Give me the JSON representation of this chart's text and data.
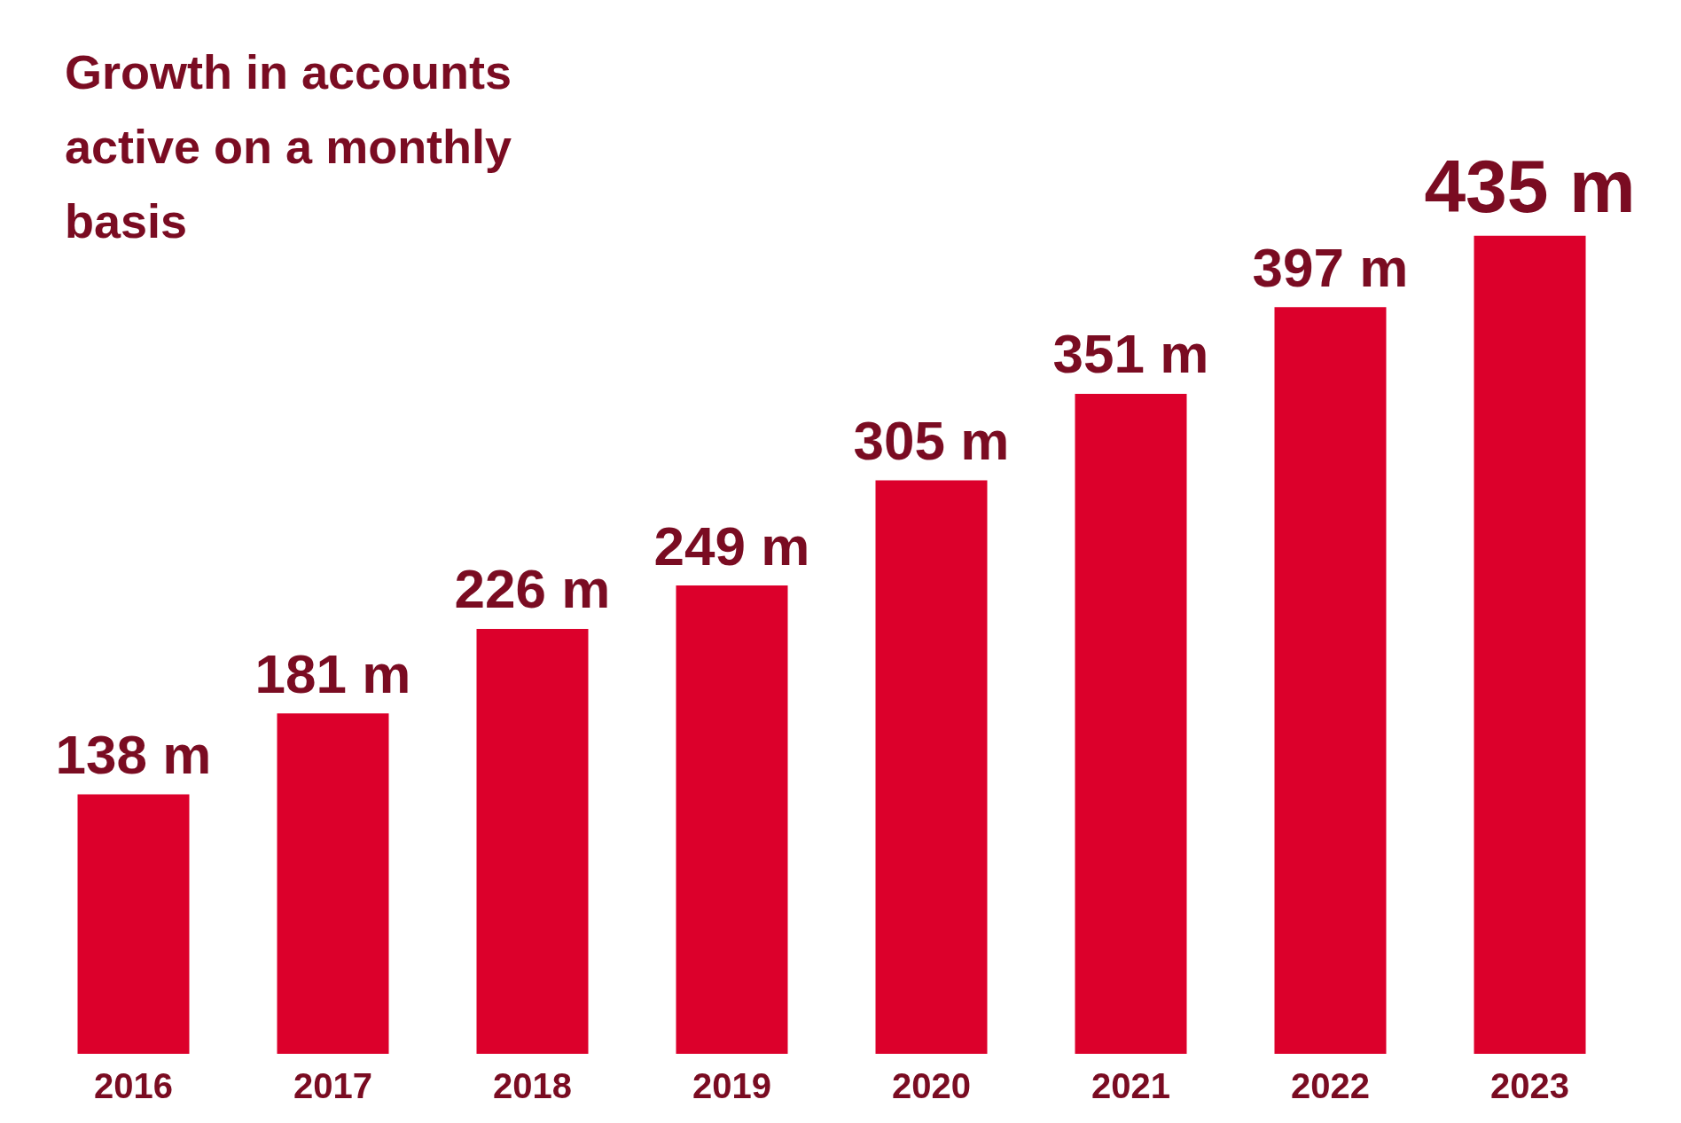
{
  "chart_data": {
    "type": "bar",
    "title": "Growth in accounts active on a monthly basis",
    "categories": [
      "2016",
      "2017",
      "2018",
      "2019",
      "2020",
      "2021",
      "2022",
      "2023"
    ],
    "values": [
      138,
      181,
      226,
      249,
      305,
      351,
      397,
      435
    ],
    "value_labels": [
      "138 m",
      "181 m",
      "226 m",
      "249 m",
      "305 m",
      "351 m",
      "397 m",
      "435 m"
    ],
    "color": "#dc002b"
  }
}
